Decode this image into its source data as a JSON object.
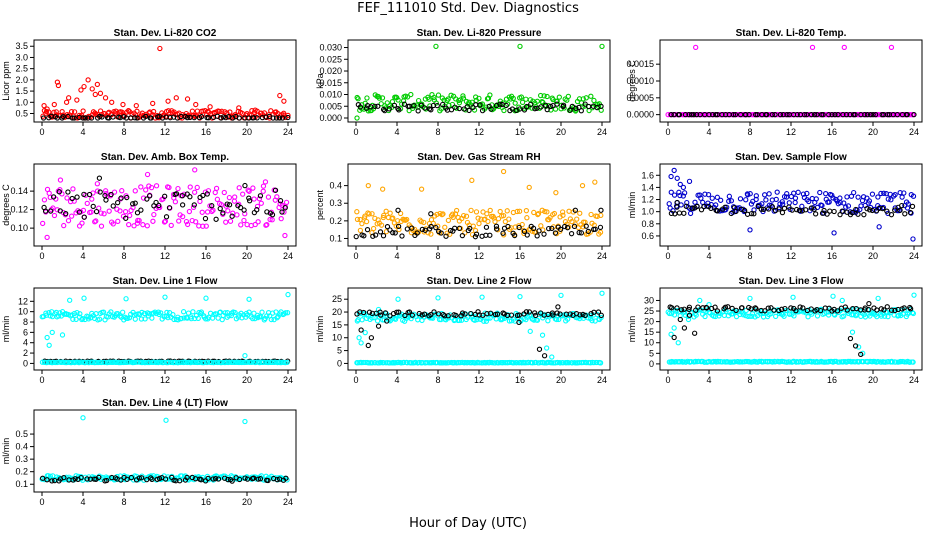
{
  "title": "FEF_111010  Std. Dev. Diagnostics",
  "xlabel": "Hour of Day (UTC)",
  "chart_data": [
    {
      "type": "scatter",
      "title": "Stan. Dev. Li-820 CO2",
      "ylabel": "Licor ppm",
      "xlim": [
        0,
        24
      ],
      "ylim": [
        0.3,
        3.6
      ],
      "xticks": [
        "0",
        "4",
        "8",
        "12",
        "16",
        "20",
        "24"
      ],
      "yticks": [
        "0.5",
        "1.0",
        "1.5",
        "2.0",
        "2.5",
        "3.0",
        "3.5"
      ],
      "series": [
        {
          "color": "#ff0000",
          "base": 0.45,
          "spread": 0.18,
          "outliers": [
            [
              0.2,
              0.85
            ],
            [
              0.5,
              0.7
            ],
            [
              1.2,
              0.9
            ],
            [
              1.5,
              1.9
            ],
            [
              1.6,
              1.75
            ],
            [
              2.4,
              1.0
            ],
            [
              2.6,
              1.2
            ],
            [
              3.4,
              1.1
            ],
            [
              3.8,
              1.55
            ],
            [
              4.1,
              1.7
            ],
            [
              4.5,
              2.0
            ],
            [
              4.9,
              1.6
            ],
            [
              5.2,
              1.35
            ],
            [
              5.4,
              1.8
            ],
            [
              5.7,
              1.4
            ],
            [
              6.2,
              1.2
            ],
            [
              6.8,
              1.0
            ],
            [
              7.9,
              0.9
            ],
            [
              9.2,
              0.85
            ],
            [
              10.8,
              0.95
            ],
            [
              11.5,
              3.4
            ],
            [
              12.3,
              1.05
            ],
            [
              13.1,
              1.2
            ],
            [
              14.2,
              1.15
            ],
            [
              15.0,
              0.9
            ],
            [
              16.4,
              0.8
            ],
            [
              19.2,
              0.75
            ],
            [
              20.8,
              0.65
            ],
            [
              23.2,
              1.3
            ],
            [
              23.6,
              1.05
            ]
          ]
        },
        {
          "color": "#000000",
          "base": 0.32,
          "spread": 0.06,
          "outliers": []
        }
      ]
    },
    {
      "type": "scatter",
      "title": "Stan. Dev. Li-820 Pressure",
      "ylabel": "kPa",
      "xlim": [
        0,
        24
      ],
      "ylim": [
        0.0,
        0.0315
      ],
      "xticks": [
        "0",
        "4",
        "8",
        "12",
        "16",
        "20",
        "24"
      ],
      "yticks": [
        "0.000",
        "0.005",
        "0.010",
        "0.015",
        "0.020",
        "0.025",
        "0.030"
      ],
      "series": [
        {
          "color": "#00cc00",
          "base": 0.0065,
          "spread": 0.0035,
          "outliers": [
            [
              7.8,
              0.0305
            ],
            [
              16.0,
              0.0305
            ],
            [
              24.0,
              0.0305
            ],
            [
              0.1,
              0.0
            ]
          ]
        },
        {
          "color": "#000000",
          "base": 0.0045,
          "spread": 0.0015,
          "outliers": []
        }
      ]
    },
    {
      "type": "scatter",
      "title": "Stan. Dev. Li-820 Temp.",
      "ylabel": "degrees C",
      "xlim": [
        0,
        24
      ],
      "ylim": [
        -0.0001,
        0.0021
      ],
      "xticks": [
        "0",
        "4",
        "8",
        "12",
        "16",
        "20",
        "24"
      ],
      "yticks": [
        "0.0000",
        "0.0005",
        "0.0010",
        "0.0015"
      ],
      "series": [
        {
          "color": "#ff00ff",
          "base": 0.0,
          "spread": 0.0,
          "outliers": [
            [
              2.7,
              0.002
            ],
            [
              14.1,
              0.002
            ],
            [
              17.2,
              0.002
            ],
            [
              21.8,
              0.002
            ]
          ]
        },
        {
          "color": "#000000",
          "base": 0.0,
          "spread": 0.0,
          "outliers": []
        }
      ]
    },
    {
      "type": "scatter",
      "title": "Stan. Dev. Amb. Box Temp.",
      "ylabel": "degrees C",
      "xlim": [
        0,
        24
      ],
      "ylim": [
        0.085,
        0.165
      ],
      "xticks": [
        "0",
        "4",
        "8",
        "12",
        "16",
        "20",
        "24"
      ],
      "yticks": [
        "0.10",
        "0.12",
        "0.14"
      ],
      "series": [
        {
          "color": "#ff00ff",
          "base": 0.124,
          "spread": 0.022,
          "outliers": [
            [
              0.5,
              0.09
            ],
            [
              1.8,
              0.152
            ],
            [
              5.4,
              0.148
            ],
            [
              10.3,
              0.158
            ],
            [
              14.9,
              0.163
            ],
            [
              21.8,
              0.15
            ],
            [
              23.7,
              0.092
            ]
          ]
        },
        {
          "color": "#000000",
          "base": 0.125,
          "spread": 0.016,
          "outliers": [
            [
              5.6,
              0.154
            ],
            [
              19.8,
              0.146
            ]
          ]
        }
      ]
    },
    {
      "type": "scatter",
      "title": "Stan. Dev. Gas Stream RH",
      "ylabel": "percent",
      "xlim": [
        0,
        24
      ],
      "ylim": [
        0.08,
        0.5
      ],
      "xticks": [
        "0",
        "4",
        "8",
        "12",
        "16",
        "20",
        "24"
      ],
      "yticks": [
        "0.1",
        "0.2",
        "0.3",
        "0.4"
      ],
      "series": [
        {
          "color": "#ffa500",
          "base": 0.19,
          "spread": 0.07,
          "outliers": [
            [
              1.2,
              0.4
            ],
            [
              2.6,
              0.38
            ],
            [
              6.4,
              0.38
            ],
            [
              11.3,
              0.43
            ],
            [
              14.4,
              0.48
            ],
            [
              16.9,
              0.39
            ],
            [
              19.5,
              0.36
            ],
            [
              22.1,
              0.4
            ],
            [
              23.3,
              0.42
            ]
          ]
        },
        {
          "color": "#000000",
          "base": 0.14,
          "spread": 0.03,
          "outliers": [
            [
              4.1,
              0.26
            ],
            [
              7.3,
              0.24
            ],
            [
              21.4,
              0.26
            ],
            [
              23.9,
              0.26
            ]
          ]
        }
      ]
    },
    {
      "type": "scatter",
      "title": "Stan. Dev. Sample Flow",
      "ylabel": "ml/min",
      "xlim": [
        0,
        24
      ],
      "ylim": [
        0.5,
        1.72
      ],
      "xticks": [
        "0",
        "4",
        "8",
        "12",
        "16",
        "20",
        "24"
      ],
      "yticks": [
        "0.6",
        "0.8",
        "1.0",
        "1.2",
        "1.4",
        "1.6"
      ],
      "series": [
        {
          "color": "#0000cc",
          "base": 1.15,
          "spread": 0.18,
          "outliers": [
            [
              0.3,
              1.58
            ],
            [
              0.6,
              1.68
            ],
            [
              0.9,
              1.55
            ],
            [
              1.2,
              1.45
            ],
            [
              1.5,
              1.4
            ],
            [
              2.1,
              1.5
            ],
            [
              8.0,
              0.7
            ],
            [
              16.2,
              0.65
            ],
            [
              20.6,
              0.75
            ],
            [
              23.9,
              0.55
            ]
          ]
        },
        {
          "color": "#000000",
          "base": 1.02,
          "spread": 0.07,
          "outliers": [
            [
              0.9,
              1.15
            ],
            [
              22.8,
              1.1
            ]
          ]
        }
      ]
    },
    {
      "type": "scatter",
      "title": "Stan. Dev. Line 1 Flow",
      "ylabel": "ml/min",
      "xlim": [
        0,
        24
      ],
      "ylim": [
        -0.5,
        13.8
      ],
      "xticks": [
        "0",
        "4",
        "8",
        "12",
        "16",
        "20",
        "24"
      ],
      "yticks": [
        "0",
        "2",
        "4",
        "6",
        "8",
        "10",
        "12"
      ],
      "series": [
        {
          "color": "#00ffff",
          "base": 9.2,
          "spread": 0.8,
          "outliers": [
            [
              0.5,
              5.0
            ],
            [
              0.7,
              3.5
            ],
            [
              1.0,
              6.0
            ],
            [
              2.7,
              12.2
            ],
            [
              4.1,
              12.6
            ],
            [
              8.2,
              12.5
            ],
            [
              12.0,
              12.8
            ],
            [
              16.0,
              12.6
            ],
            [
              20.2,
              12.4
            ],
            [
              19.8,
              1.5
            ],
            [
              24.0,
              13.3
            ],
            [
              2.0,
              5.5
            ]
          ]
        },
        {
          "color": "#000000",
          "base": 0.4,
          "spread": 0.05,
          "outliers": []
        },
        {
          "color": "#00ffff",
          "base": 0.2,
          "spread": 0.05,
          "outliers": []
        }
      ]
    },
    {
      "type": "scatter",
      "title": "Stan. Dev. Line 2 Flow",
      "ylabel": "ml/min",
      "xlim": [
        0,
        24
      ],
      "ylim": [
        -1,
        27.8
      ],
      "xticks": [
        "0",
        "4",
        "8",
        "12",
        "16",
        "20",
        "24"
      ],
      "yticks": [
        "0",
        "5",
        "10",
        "15",
        "20",
        "25"
      ],
      "series": [
        {
          "color": "#00ffff",
          "base": 18.0,
          "spread": 1.6,
          "outliers": [
            [
              0.3,
              10.0
            ],
            [
              0.5,
              8.0
            ],
            [
              0.9,
              12.0
            ],
            [
              2.2,
              21.0
            ],
            [
              4.1,
              25.0
            ],
            [
              8.0,
              25.5
            ],
            [
              12.3,
              25.8
            ],
            [
              16.0,
              26.0
            ],
            [
              18.2,
              11.0
            ],
            [
              18.6,
              6.0
            ],
            [
              19.1,
              2.5
            ],
            [
              20.0,
              26.5
            ],
            [
              24.0,
              27.3
            ],
            [
              17.0,
              12.5
            ]
          ]
        },
        {
          "color": "#000000",
          "base": 19.3,
          "spread": 0.8,
          "outliers": [
            [
              0.5,
              13.0
            ],
            [
              1.2,
              7.0
            ],
            [
              1.5,
              10.0
            ],
            [
              2.2,
              14.5
            ],
            [
              3.0,
              16.5
            ],
            [
              17.9,
              5.5
            ],
            [
              18.4,
              3.0
            ],
            [
              19.7,
              22.0
            ],
            [
              15.9,
              16.0
            ]
          ]
        },
        {
          "color": "#00ffff",
          "base": 0.3,
          "spread": 0.1,
          "outliers": []
        }
      ]
    },
    {
      "type": "scatter",
      "title": "Stan. Dev. Line 3 Flow",
      "ylabel": "ml/min",
      "xlim": [
        0,
        24
      ],
      "ylim": [
        -1,
        34
      ],
      "xticks": [
        "0",
        "4",
        "8",
        "12",
        "16",
        "20",
        "24"
      ],
      "yticks": [
        "0",
        "5",
        "10",
        "15",
        "20",
        "25",
        "30"
      ],
      "series": [
        {
          "color": "#00ffff",
          "base": 24.0,
          "spread": 1.8,
          "outliers": [
            [
              0.3,
              14.0
            ],
            [
              0.6,
              17.0
            ],
            [
              1.0,
              10.0
            ],
            [
              2.0,
              21.0
            ],
            [
              3.1,
              30.0
            ],
            [
              4.0,
              28.0
            ],
            [
              8.0,
              31.0
            ],
            [
              12.2,
              31.5
            ],
            [
              16.1,
              32.0
            ],
            [
              17.0,
              30.0
            ],
            [
              18.0,
              15.0
            ],
            [
              18.6,
              8.0
            ],
            [
              19.0,
              5.0
            ],
            [
              20.5,
              31.0
            ],
            [
              24.0,
              32.5
            ]
          ]
        },
        {
          "color": "#000000",
          "base": 26.0,
          "spread": 1.0,
          "outliers": [
            [
              0.6,
              12.5
            ],
            [
              1.2,
              21.0
            ],
            [
              1.6,
              17.0
            ],
            [
              2.1,
              23.0
            ],
            [
              2.6,
              14.5
            ],
            [
              17.8,
              12.0
            ],
            [
              18.3,
              8.5
            ],
            [
              18.8,
              4.5
            ],
            [
              19.6,
              28.5
            ]
          ]
        },
        {
          "color": "#00ffff",
          "base": 1.0,
          "spread": 0.2,
          "outliers": []
        }
      ]
    },
    {
      "type": "scatter",
      "title": "Stan. Dev. Line 4 (LT) Flow",
      "ylabel": "ml/min",
      "xlim": [
        0,
        24
      ],
      "ylim": [
        0.07,
        0.66
      ],
      "xticks": [
        "0",
        "4",
        "8",
        "12",
        "16",
        "20",
        "24"
      ],
      "yticks": [
        "0.1",
        "0.2",
        "0.3",
        "0.4",
        "0.5"
      ],
      "series": [
        {
          "color": "#00ffff",
          "base": 0.15,
          "spread": 0.018,
          "outliers": [
            [
              4.0,
              0.63
            ],
            [
              12.1,
              0.61
            ],
            [
              19.8,
              0.6
            ]
          ]
        },
        {
          "color": "#000000",
          "base": 0.14,
          "spread": 0.015,
          "outliers": []
        }
      ]
    }
  ]
}
